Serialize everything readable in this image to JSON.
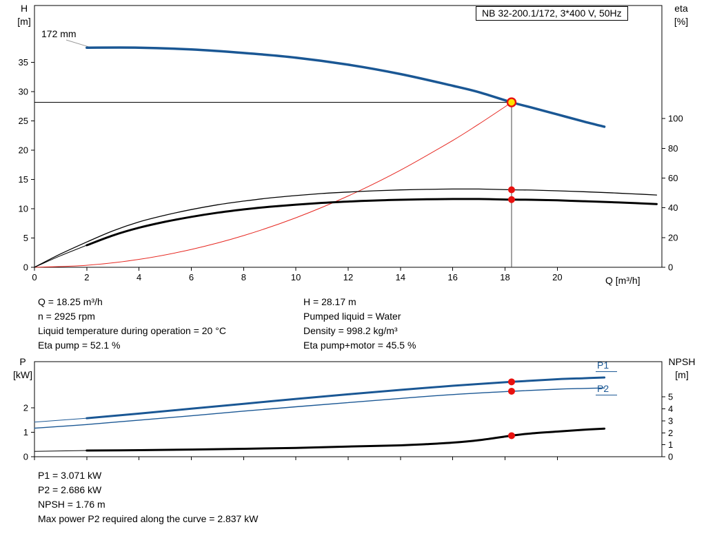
{
  "page": {
    "title_box": "NB 32-200.1/172, 3*400 V, 50Hz",
    "impeller_label": "172 mm",
    "top_axis": {
      "left_title": "H",
      "left_unit": "[m]",
      "right_title": "eta",
      "right_unit": "[%]",
      "x_title": "Q [m³/h]"
    },
    "bottom_axis": {
      "left_title": "P",
      "left_unit": "[kW]",
      "right_title": "NPSH",
      "right_unit": "[m]"
    },
    "curve_labels": {
      "p1": "P1",
      "p2": "P2"
    }
  },
  "info_top_left": [
    "Q = 18.25 m³/h",
    "n = 2925 rpm",
    "Liquid temperature during operation = 20 °C",
    "Eta pump = 52.1 %"
  ],
  "info_top_right": [
    "H = 28.17 m",
    "Pumped liquid = Water",
    "Density = 998.2 kg/m³",
    "Eta pump+motor = 45.5 %"
  ],
  "info_bottom": [
    "P1 = 3.071 kW",
    "P2 = 2.686 kW",
    "NPSH = 1.76 m",
    "Max power P2 required along the curve = 2.837 kW"
  ],
  "colors": {
    "blue": "#1a5794",
    "red": "#e6261f",
    "black": "#000000",
    "dot_red": "#e8110f",
    "yellow": "#ffe100",
    "duty_line": "#444444",
    "leader": "#999999"
  },
  "chart_data": [
    {
      "type": "line",
      "name": "qh-eta-chart",
      "title": "NB 32-200.1/172, 3*400 V, 50Hz",
      "xlabel": "Q [m³/h]",
      "ylabel_left": "H [m]",
      "ylabel_right": "eta [%]",
      "xlim": [
        0,
        24
      ],
      "xticks": [
        0,
        2,
        4,
        6,
        8,
        10,
        12,
        14,
        16,
        18,
        20
      ],
      "show_xtick_labels": true,
      "ylim_left": [
        0,
        44.7
      ],
      "yticks_left": [
        0,
        5,
        10,
        15,
        20,
        25,
        30,
        35
      ],
      "ylim_right": [
        0,
        176
      ],
      "yticks_right": [
        0,
        20,
        40,
        60,
        80,
        100
      ],
      "duty_point": {
        "q": 18.25,
        "h": 28.17,
        "eta_pump": 52.1,
        "eta_pump_motor": 45.5
      },
      "duty_lines": {
        "q": 18.25,
        "v": 28.17
      },
      "series": [
        {
          "name": "pump-curve-172mm",
          "axis": "left",
          "color": "blue",
          "width": 3.5,
          "points": [
            [
              2,
              37.5
            ],
            [
              4,
              37.5
            ],
            [
              6,
              37.2
            ],
            [
              8,
              36.6
            ],
            [
              10,
              35.8
            ],
            [
              12,
              34.6
            ],
            [
              14,
              33.0
            ],
            [
              16,
              31.0
            ],
            [
              17,
              29.9
            ],
            [
              18.25,
              28.17
            ],
            [
              19,
              27.3
            ],
            [
              20,
              26.1
            ],
            [
              21,
              24.9
            ],
            [
              21.8,
              24.0
            ]
          ]
        },
        {
          "name": "system-curve",
          "axis": "left",
          "color": "red",
          "width": 1,
          "points": [
            [
              0,
              0
            ],
            [
              2,
              0.34
            ],
            [
              4,
              1.35
            ],
            [
              6,
              3.05
            ],
            [
              8,
              5.41
            ],
            [
              10,
              8.46
            ],
            [
              12,
              12.18
            ],
            [
              14,
              16.58
            ],
            [
              16,
              21.66
            ],
            [
              17,
              24.46
            ],
            [
              18,
              27.41
            ],
            [
              18.25,
              28.17
            ]
          ]
        },
        {
          "name": "eta-pump-curve",
          "axis": "right",
          "color": "black",
          "width": 1.3,
          "points": [
            [
              0,
              0
            ],
            [
              1,
              9
            ],
            [
              2,
              17
            ],
            [
              3,
              24.5
            ],
            [
              4,
              30.5
            ],
            [
              5,
              35
            ],
            [
              6,
              38.8
            ],
            [
              7,
              42
            ],
            [
              8,
              44.5
            ],
            [
              9,
              46.6
            ],
            [
              10,
              48.2
            ],
            [
              11,
              49.6
            ],
            [
              12,
              50.6
            ],
            [
              13,
              51.4
            ],
            [
              14,
              52.0
            ],
            [
              15,
              52.4
            ],
            [
              16,
              52.6
            ],
            [
              17,
              52.6
            ],
            [
              18.25,
              52.1
            ],
            [
              19,
              51.9
            ],
            [
              20,
              51.4
            ],
            [
              21,
              50.8
            ],
            [
              22,
              50.1
            ],
            [
              23,
              49.3
            ],
            [
              23.8,
              48.6
            ]
          ]
        },
        {
          "name": "eta-pump-motor-curve",
          "axis": "right",
          "color": "black",
          "width": 3,
          "thick_from": 2,
          "points": [
            [
              0,
              0
            ],
            [
              1,
              7.8
            ],
            [
              2,
              14.8
            ],
            [
              3,
              21.4
            ],
            [
              4,
              26.6
            ],
            [
              5,
              30.6
            ],
            [
              6,
              33.9
            ],
            [
              7,
              36.7
            ],
            [
              8,
              38.9
            ],
            [
              9,
              40.7
            ],
            [
              10,
              42.1
            ],
            [
              11,
              43.3
            ],
            [
              12,
              44.2
            ],
            [
              13,
              44.9
            ],
            [
              14,
              45.4
            ],
            [
              15,
              45.7
            ],
            [
              16,
              45.9
            ],
            [
              17,
              45.9
            ],
            [
              18.25,
              45.5
            ],
            [
              19,
              45.4
            ],
            [
              20,
              45.0
            ],
            [
              21,
              44.4
            ],
            [
              22,
              43.8
            ],
            [
              23,
              43.1
            ],
            [
              23.8,
              42.5
            ]
          ]
        }
      ],
      "markers": [
        {
          "name": "duty-point-marker",
          "q": 18.25,
          "v": 28.17,
          "axis": "left",
          "style": "duty"
        },
        {
          "name": "eta-pump-dot",
          "q": 18.25,
          "v": 52.1,
          "axis": "right",
          "style": "dot"
        },
        {
          "name": "eta-pump-motor-dot",
          "q": 18.25,
          "v": 45.5,
          "axis": "right",
          "style": "dot"
        }
      ]
    },
    {
      "type": "line",
      "name": "power-npsh-chart",
      "xlabel": "",
      "ylabel_left": "P [kW]",
      "ylabel_right": "NPSH [m]",
      "xlim": [
        0,
        24
      ],
      "xticks": [
        0,
        2,
        4,
        6,
        8,
        10,
        12,
        14,
        16,
        18,
        20
      ],
      "show_xtick_labels": false,
      "ylim_left": [
        0,
        3.9
      ],
      "yticks_left": [
        0,
        1,
        2
      ],
      "ylim_right": [
        0,
        7.95
      ],
      "yticks_right": [
        0,
        1,
        2,
        3,
        4,
        5
      ],
      "duty_point": {
        "q": 18.25,
        "p1": 3.071,
        "p2": 2.686,
        "npsh": 1.76
      },
      "series": [
        {
          "name": "p1-curve",
          "axis": "left",
          "color": "blue",
          "width": 3,
          "thick_from": 2,
          "points": [
            [
              0,
              1.42
            ],
            [
              2,
              1.58
            ],
            [
              4,
              1.77
            ],
            [
              6,
              1.97
            ],
            [
              8,
              2.17
            ],
            [
              10,
              2.37
            ],
            [
              12,
              2.56
            ],
            [
              14,
              2.74
            ],
            [
              16,
              2.91
            ],
            [
              18.25,
              3.071
            ],
            [
              20,
              3.18
            ],
            [
              21,
              3.22
            ],
            [
              21.8,
              3.25
            ]
          ]
        },
        {
          "name": "p2-curve",
          "axis": "left",
          "color": "blue",
          "width": 1.4,
          "points": [
            [
              0,
              1.17
            ],
            [
              2,
              1.32
            ],
            [
              4,
              1.5
            ],
            [
              6,
              1.68
            ],
            [
              8,
              1.87
            ],
            [
              10,
              2.05
            ],
            [
              12,
              2.22
            ],
            [
              14,
              2.39
            ],
            [
              16,
              2.55
            ],
            [
              18.25,
              2.686
            ],
            [
              20,
              2.77
            ],
            [
              21,
              2.8
            ],
            [
              21.8,
              2.82
            ]
          ]
        },
        {
          "name": "npsh-curve",
          "axis": "right",
          "color": "black",
          "width": 3,
          "thick_from": 2,
          "points": [
            [
              0,
              0.45
            ],
            [
              2,
              0.52
            ],
            [
              4,
              0.55
            ],
            [
              6,
              0.6
            ],
            [
              8,
              0.66
            ],
            [
              10,
              0.74
            ],
            [
              12,
              0.85
            ],
            [
              14,
              0.95
            ],
            [
              15,
              1.05
            ],
            [
              16,
              1.18
            ],
            [
              17,
              1.38
            ],
            [
              18.25,
              1.76
            ],
            [
              19,
              1.95
            ],
            [
              20,
              2.1
            ],
            [
              21,
              2.25
            ],
            [
              21.8,
              2.35
            ]
          ]
        }
      ],
      "markers": [
        {
          "name": "p1-dot",
          "q": 18.25,
          "v": 3.071,
          "axis": "left",
          "style": "dot"
        },
        {
          "name": "p2-dot",
          "q": 18.25,
          "v": 2.686,
          "axis": "left",
          "style": "dot"
        },
        {
          "name": "npsh-dot",
          "q": 18.25,
          "v": 1.76,
          "axis": "right",
          "style": "dot"
        }
      ]
    }
  ]
}
